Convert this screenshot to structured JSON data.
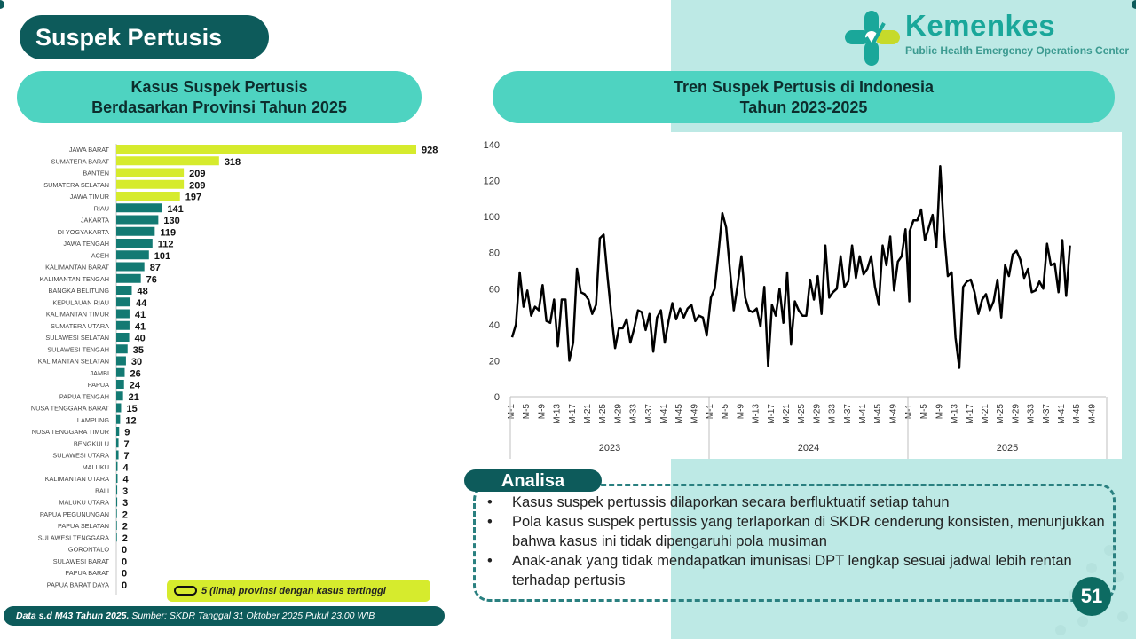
{
  "title": "Suspek Pertusis",
  "logo": {
    "name": "Kemenkes",
    "subtitle": "Public Health Emergency Operations Center"
  },
  "left_panel": {
    "title_line1": "Kasus Suspek Pertusis",
    "title_line2": "Berdasarkan Provinsi Tahun 2025"
  },
  "right_panel": {
    "title_line1": "Tren Suspek Pertusis di Indonesia",
    "title_line2": "Tahun 2023-2025"
  },
  "legend_note": "5 (lima) provinsi dengan kasus tertinggi",
  "footer": {
    "bold": "Data s.d M43 Tahun 2025.",
    "rest": " Sumber: SKDR Tanggal 31 Oktober 2025 Pukul 23.00 WIB"
  },
  "analysis": {
    "label": "Analisa",
    "items": [
      "Kasus suspek pertussis dilaporkan secara berfluktuatif setiap tahun",
      "Pola kasus suspek pertussis yang terlaporkan di SKDR cenderung konsisten, menunjukkan bahwa kasus ini tidak dipengaruhi pola musiman",
      "Anak-anak yang tidak mendapatkan imunisasi DPT lengkap sesuai jadwal lebih rentan terhadap pertusis"
    ]
  },
  "page_number": "51",
  "colors": {
    "highlight": "#d6eb2d",
    "bar": "#137a73",
    "line": "#000000",
    "dark": "#0d5b5b",
    "pill": "#4ed3c1"
  },
  "chart_data": [
    {
      "type": "bar",
      "orientation": "horizontal",
      "highlight_count": 5,
      "categories": [
        "JAWA BARAT",
        "SUMATERA BARAT",
        "BANTEN",
        "SUMATERA SELATAN",
        "JAWA TIMUR",
        "RIAU",
        "JAKARTA",
        "DI YOGYAKARTA",
        "JAWA TENGAH",
        "ACEH",
        "KALIMANTAN BARAT",
        "KALIMANTAN TENGAH",
        "BANGKA BELITUNG",
        "KEPULAUAN RIAU",
        "KALIMANTAN TIMUR",
        "SUMATERA UTARA",
        "SULAWESI SELATAN",
        "SULAWESI TENGAH",
        "KALIMANTAN SELATAN",
        "JAMBI",
        "PAPUA",
        "PAPUA TENGAH",
        "NUSA TENGGARA BARAT",
        "LAMPUNG",
        "NUSA TENGGARA TIMUR",
        "BENGKULU",
        "SULAWESI UTARA",
        "MALUKU",
        "KALIMANTAN UTARA",
        "BALI",
        "MALUKU UTARA",
        "PAPUA PEGUNUNGAN",
        "PAPUA SELATAN",
        "SULAWESI TENGGARA",
        "GORONTALO",
        "SULAWESI BARAT",
        "PAPUA BARAT",
        "PAPUA BARAT DAYA"
      ],
      "values": [
        928,
        318,
        209,
        209,
        197,
        141,
        130,
        119,
        112,
        101,
        87,
        76,
        48,
        44,
        41,
        41,
        40,
        35,
        30,
        26,
        24,
        21,
        15,
        12,
        9,
        7,
        7,
        4,
        4,
        3,
        3,
        2,
        2,
        2,
        0,
        0,
        0,
        0
      ]
    },
    {
      "type": "line",
      "y_ticks": [
        0,
        20,
        40,
        60,
        80,
        100,
        120,
        140
      ],
      "ylim": [
        0,
        140
      ],
      "week_labels": [
        "M-1",
        "M-5",
        "M-9",
        "M-13",
        "M-17",
        "M-21",
        "M-25",
        "M-29",
        "M-33",
        "M-37",
        "M-41",
        "M-45",
        "M-49"
      ],
      "years": [
        "2023",
        "2024",
        "2025"
      ],
      "series": [
        {
          "values": [
            [
              33,
              40,
              69,
              50,
              59,
              45,
              50,
              48,
              62,
              42,
              41,
              54,
              28,
              54,
              54,
              20,
              30,
              71,
              58,
              57,
              54,
              46,
              51,
              88,
              90,
              67,
              46,
              27,
              38,
              38,
              43,
              30,
              38,
              48,
              47,
              37,
              46,
              25,
              44,
              48,
              30,
              42,
              52,
              43,
              49,
              44,
              49,
              51,
              42,
              45,
              44,
              34
            ],
            [
              55,
              60,
              80,
              102,
              94,
              70,
              48,
              62,
              78,
              55,
              48,
              47,
              49,
              39,
              61,
              17,
              51,
              45,
              60,
              41,
              69,
              29,
              53,
              48,
              45,
              45,
              65,
              54,
              67,
              46,
              84,
              55,
              58,
              60,
              78,
              61,
              64,
              84,
              66,
              78,
              68,
              71,
              78,
              61,
              51,
              84,
              73,
              89,
              59,
              75,
              78,
              93,
              53
            ],
            [
              92,
              98,
              98,
              104,
              87,
              94,
              101,
              83,
              128,
              92,
              67,
              69,
              33,
              16,
              61,
              64,
              65,
              58,
              46,
              54,
              57,
              48,
              53,
              65,
              44,
              73,
              67,
              79,
              81,
              76,
              66,
              71,
              58,
              59,
              64,
              60,
              85,
              73,
              74,
              58,
              87,
              56,
              84
            ]
          ]
        }
      ]
    }
  ]
}
